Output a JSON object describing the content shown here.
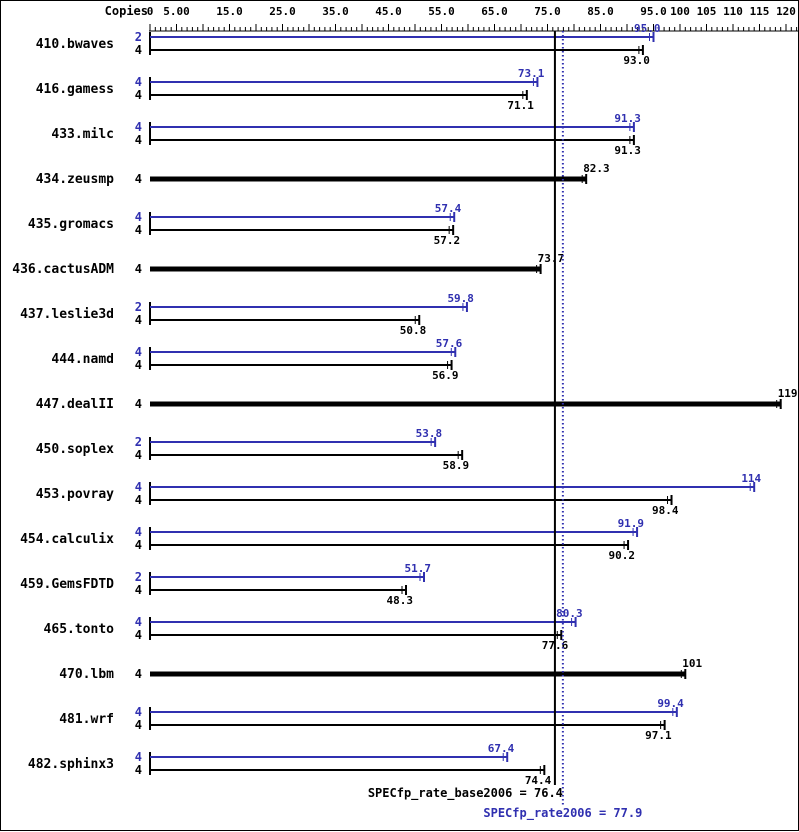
{
  "header": {
    "copies_label": "Copies"
  },
  "footer": {
    "base_label": "SPECfp_rate_base2006 = 76.4",
    "peak_label": "SPECfp_rate2006 = 77.9"
  },
  "colors": {
    "peak_blue": "#3030b0",
    "base_black": "#000000",
    "background": "#ffffff"
  },
  "chart_data": {
    "type": "bar",
    "orientation": "horizontal",
    "title": "",
    "value_axis": {
      "min": 0,
      "max": 122,
      "tick_labels": [
        "0",
        "5.00",
        "15.0",
        "25.0",
        "35.0",
        "45.0",
        "55.0",
        "65.0",
        "75.0",
        "85.0",
        "95.0",
        "100",
        "105",
        "110",
        "115",
        "120"
      ],
      "tick_values": [
        0,
        5,
        15,
        25,
        35,
        45,
        55,
        65,
        75,
        85,
        95,
        100,
        105,
        110,
        115,
        120
      ],
      "minor_tick_step": 1,
      "major_tick_step": 5
    },
    "series": [
      {
        "name": "SPECfp_rate2006 (peak)",
        "color": "#3030b0"
      },
      {
        "name": "SPECfp_rate_base2006 (base)",
        "color": "#000000"
      }
    ],
    "benchmarks": [
      {
        "name": "410.bwaves",
        "peak": {
          "copies": "2",
          "value": 95.0,
          "label": "95.0"
        },
        "base": {
          "copies": "4",
          "value": 93.0,
          "label": "93.0"
        }
      },
      {
        "name": "416.gamess",
        "peak": {
          "copies": "4",
          "value": 73.1,
          "label": "73.1"
        },
        "base": {
          "copies": "4",
          "value": 71.1,
          "label": "71.1"
        }
      },
      {
        "name": "433.milc",
        "peak": {
          "copies": "4",
          "value": 91.3,
          "label": "91.3"
        },
        "base": {
          "copies": "4",
          "value": 91.3,
          "label": "91.3"
        }
      },
      {
        "name": "434.zeusmp",
        "base": {
          "copies": "4",
          "value": 82.3,
          "label": "82.3"
        }
      },
      {
        "name": "435.gromacs",
        "peak": {
          "copies": "4",
          "value": 57.4,
          "label": "57.4"
        },
        "base": {
          "copies": "4",
          "value": 57.2,
          "label": "57.2"
        }
      },
      {
        "name": "436.cactusADM",
        "base": {
          "copies": "4",
          "value": 73.7,
          "label": "73.7"
        }
      },
      {
        "name": "437.leslie3d",
        "peak": {
          "copies": "2",
          "value": 59.8,
          "label": "59.8"
        },
        "base": {
          "copies": "4",
          "value": 50.8,
          "label": "50.8"
        }
      },
      {
        "name": "444.namd",
        "peak": {
          "copies": "4",
          "value": 57.6,
          "label": "57.6"
        },
        "base": {
          "copies": "4",
          "value": 56.9,
          "label": "56.9"
        }
      },
      {
        "name": "447.dealII",
        "base": {
          "copies": "4",
          "value": 119,
          "label": "119"
        }
      },
      {
        "name": "450.soplex",
        "peak": {
          "copies": "2",
          "value": 53.8,
          "label": "53.8"
        },
        "base": {
          "copies": "4",
          "value": 58.9,
          "label": "58.9"
        }
      },
      {
        "name": "453.povray",
        "peak": {
          "copies": "4",
          "value": 114,
          "label": "114"
        },
        "base": {
          "copies": "4",
          "value": 98.4,
          "label": "98.4"
        }
      },
      {
        "name": "454.calculix",
        "peak": {
          "copies": "4",
          "value": 91.9,
          "label": "91.9"
        },
        "base": {
          "copies": "4",
          "value": 90.2,
          "label": "90.2"
        }
      },
      {
        "name": "459.GemsFDTD",
        "peak": {
          "copies": "2",
          "value": 51.7,
          "label": "51.7"
        },
        "base": {
          "copies": "4",
          "value": 48.3,
          "label": "48.3"
        }
      },
      {
        "name": "465.tonto",
        "peak": {
          "copies": "4",
          "value": 80.3,
          "label": "80.3"
        },
        "base": {
          "copies": "4",
          "value": 77.6,
          "label": "77.6"
        }
      },
      {
        "name": "470.lbm",
        "base": {
          "copies": "4",
          "value": 101,
          "label": "101"
        }
      },
      {
        "name": "481.wrf",
        "peak": {
          "copies": "4",
          "value": 99.4,
          "label": "99.4"
        },
        "base": {
          "copies": "4",
          "value": 97.1,
          "label": "97.1"
        }
      },
      {
        "name": "482.sphinx3",
        "peak": {
          "copies": "4",
          "value": 67.4,
          "label": "67.4"
        },
        "base": {
          "copies": "4",
          "value": 74.4,
          "label": "74.4"
        }
      }
    ],
    "reference_lines": [
      {
        "name": "base-mean",
        "value": 76.4,
        "style": "solid",
        "color": "#000000"
      },
      {
        "name": "peak-mean",
        "value": 77.9,
        "style": "dotted",
        "color": "#3030b0"
      }
    ]
  }
}
